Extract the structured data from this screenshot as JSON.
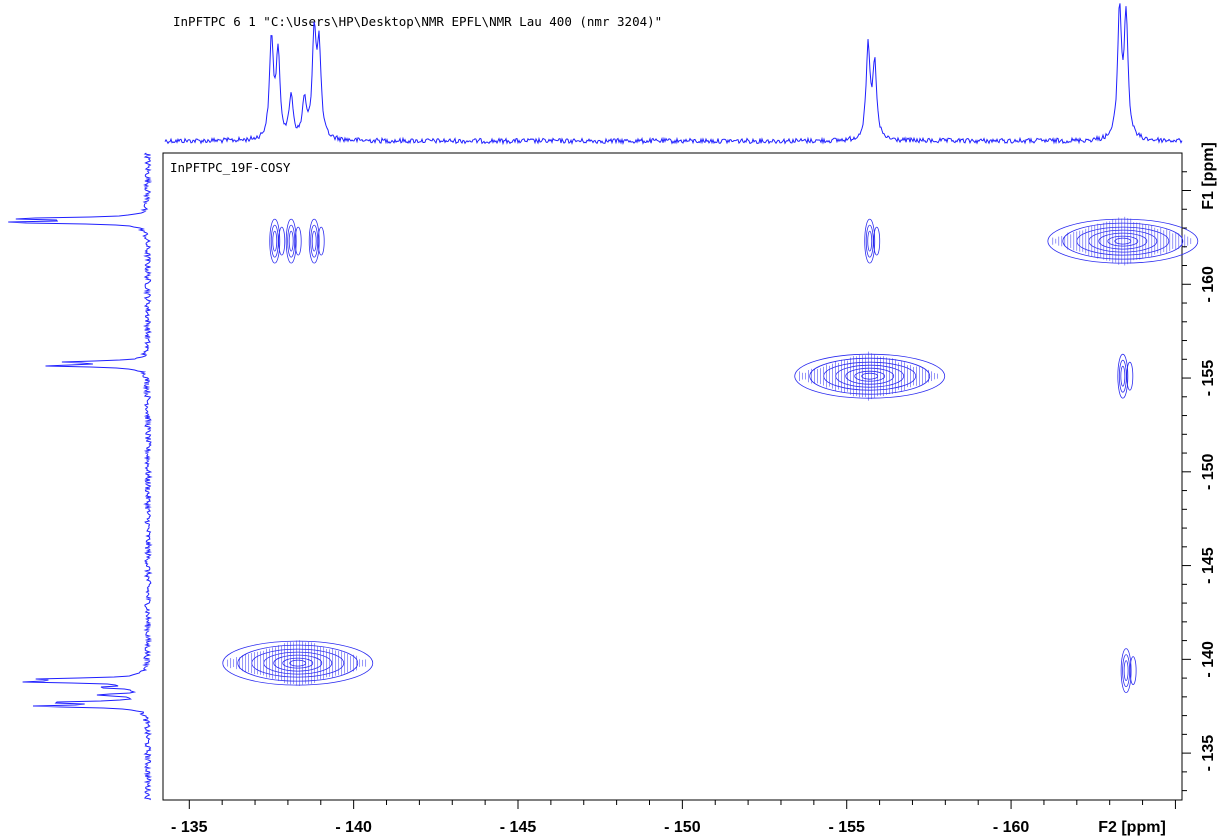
{
  "header_text": "InPFTPC   6  1  \"C:\\Users\\HP\\Desktop\\NMR EPFL\\NMR Lau 400 (nmr 3204)\"",
  "plot_title": "InPFTPC_19F-COSY",
  "colors": {
    "spectrum": "#1f1fff",
    "contour": "#2b2bf0",
    "axis": "#000000",
    "background": "#ffffff"
  },
  "chart_data": {
    "type": "scatter",
    "title": "InPFTPC_19F-COSY",
    "xlabel": "F2 [ppm]",
    "ylabel": "F1 [ppm]",
    "xlim": [
      -134.2,
      -165.2
    ],
    "ylim": [
      -132.5,
      -167
    ],
    "x_ticks": [
      -135,
      -140,
      -145,
      -150,
      -155,
      -160
    ],
    "y_ticks": [
      -160,
      -155,
      -150,
      -145,
      -140,
      -135
    ],
    "x_tick_labels": [
      "- 135",
      "- 140",
      "- 145",
      "- 150",
      "- 155",
      "- 160"
    ],
    "y_tick_labels": [
      "- 160",
      "- 155",
      "- 150",
      "- 145",
      "- 140",
      "- 135"
    ],
    "grid": false,
    "peaks_1d": [
      {
        "ppm": -137.5,
        "height": 0.74
      },
      {
        "ppm": -137.7,
        "height": 0.62
      },
      {
        "ppm": -138.1,
        "height": 0.32
      },
      {
        "ppm": -138.5,
        "height": 0.28
      },
      {
        "ppm": -138.8,
        "height": 0.77
      },
      {
        "ppm": -138.95,
        "height": 0.65
      },
      {
        "ppm": -155.65,
        "height": 0.68
      },
      {
        "ppm": -155.85,
        "height": 0.55
      },
      {
        "ppm": -163.3,
        "height": 0.95
      },
      {
        "ppm": -163.5,
        "height": 0.9
      }
    ],
    "cross_peaks": [
      {
        "f2": -137.6,
        "f1": -162.3,
        "size": "small"
      },
      {
        "f2": -138.1,
        "f1": -162.3,
        "size": "small"
      },
      {
        "f2": -138.8,
        "f1": -162.3,
        "size": "small"
      },
      {
        "f2": -155.7,
        "f1": -162.3,
        "size": "small"
      },
      {
        "f2": -163.4,
        "f1": -162.3,
        "size": "diagonal"
      },
      {
        "f2": -155.7,
        "f1": -155.1,
        "size": "diagonal"
      },
      {
        "f2": -163.4,
        "f1": -155.1,
        "size": "small"
      },
      {
        "f2": -138.3,
        "f1": -139.8,
        "size": "diagonal"
      },
      {
        "f2": -163.5,
        "f1": -139.4,
        "size": "small"
      }
    ]
  }
}
